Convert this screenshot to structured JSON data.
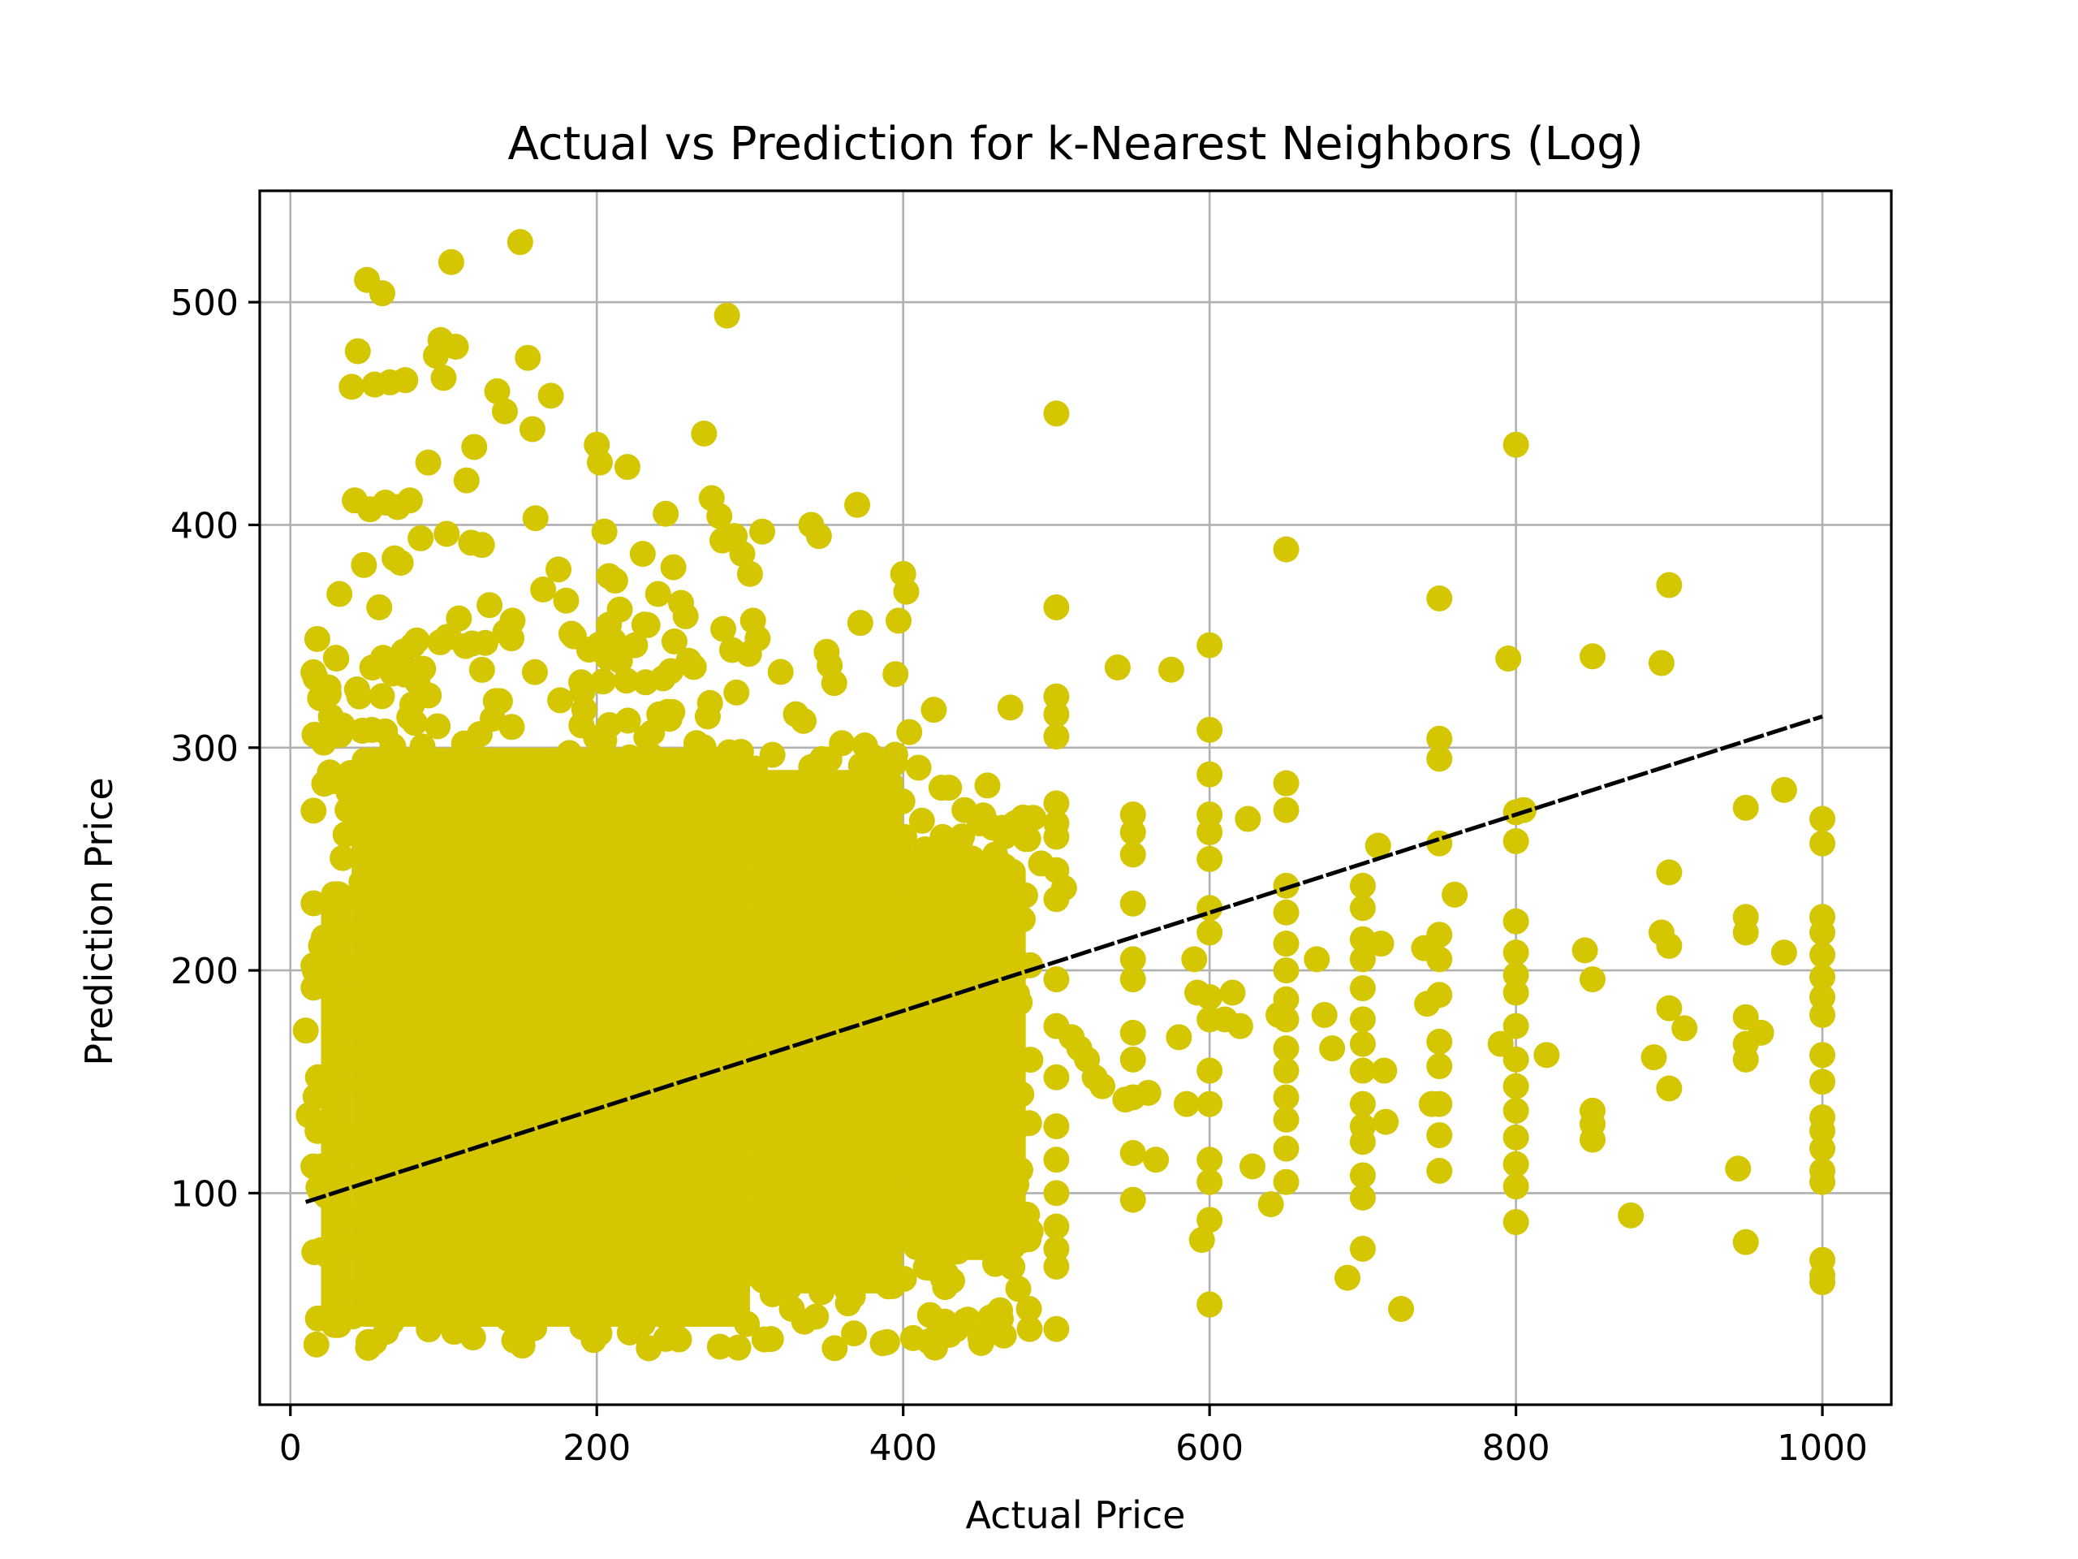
{
  "chart_data": {
    "type": "scatter",
    "title": "Actual vs Prediction for k-Nearest Neighbors (Log)",
    "xlabel": "Actual Price",
    "ylabel": "Prediction Price",
    "xlim": [
      -20,
      1045
    ],
    "ylim": [
      5,
      550
    ],
    "xticks": [
      0,
      200,
      400,
      600,
      800,
      1000
    ],
    "yticks": [
      100,
      200,
      300,
      400,
      500
    ],
    "grid": true,
    "colors": {
      "points": "#d4c600",
      "fit_line": "#000000"
    },
    "fit_line": {
      "x": [
        10,
        1000
      ],
      "y": [
        96,
        314
      ],
      "style": "dashed"
    },
    "points": [
      [
        10,
        173
      ],
      [
        12,
        135
      ],
      [
        15,
        112
      ],
      [
        18,
        152
      ],
      [
        20,
        211
      ],
      [
        22,
        195
      ],
      [
        25,
        324
      ],
      [
        28,
        285
      ],
      [
        30,
        340
      ],
      [
        32,
        369
      ],
      [
        34,
        310
      ],
      [
        36,
        261
      ],
      [
        38,
        280
      ],
      [
        40,
        462
      ],
      [
        42,
        411
      ],
      [
        44,
        478
      ],
      [
        45,
        323
      ],
      [
        48,
        382
      ],
      [
        50,
        510
      ],
      [
        52,
        407
      ],
      [
        55,
        463
      ],
      [
        58,
        363
      ],
      [
        60,
        504
      ],
      [
        62,
        410
      ],
      [
        65,
        464
      ],
      [
        68,
        385
      ],
      [
        70,
        408
      ],
      [
        72,
        383
      ],
      [
        75,
        465
      ],
      [
        78,
        411
      ],
      [
        80,
        346
      ],
      [
        85,
        394
      ],
      [
        90,
        428
      ],
      [
        95,
        476
      ],
      [
        98,
        483
      ],
      [
        100,
        466
      ],
      [
        102,
        396
      ],
      [
        105,
        518
      ],
      [
        108,
        480
      ],
      [
        110,
        358
      ],
      [
        115,
        420
      ],
      [
        118,
        392
      ],
      [
        120,
        435
      ],
      [
        125,
        391
      ],
      [
        130,
        364
      ],
      [
        135,
        460
      ],
      [
        140,
        451
      ],
      [
        145,
        357
      ],
      [
        150,
        527
      ],
      [
        155,
        475
      ],
      [
        158,
        443
      ],
      [
        160,
        403
      ],
      [
        165,
        371
      ],
      [
        170,
        458
      ],
      [
        175,
        380
      ],
      [
        180,
        366
      ],
      [
        185,
        350
      ],
      [
        190,
        310
      ],
      [
        195,
        344
      ],
      [
        200,
        436
      ],
      [
        202,
        428
      ],
      [
        205,
        397
      ],
      [
        208,
        377
      ],
      [
        212,
        375
      ],
      [
        215,
        362
      ],
      [
        220,
        426
      ],
      [
        225,
        346
      ],
      [
        230,
        387
      ],
      [
        240,
        369
      ],
      [
        245,
        405
      ],
      [
        250,
        381
      ],
      [
        255,
        365
      ],
      [
        258,
        359
      ],
      [
        260,
        339
      ],
      [
        265,
        302
      ],
      [
        270,
        441
      ],
      [
        275,
        412
      ],
      [
        280,
        404
      ],
      [
        282,
        393
      ],
      [
        285,
        494
      ],
      [
        290,
        395
      ],
      [
        295,
        387
      ],
      [
        300,
        378
      ],
      [
        302,
        357
      ],
      [
        305,
        349
      ],
      [
        308,
        397
      ],
      [
        320,
        334
      ],
      [
        330,
        315
      ],
      [
        335,
        312
      ],
      [
        340,
        400
      ],
      [
        345,
        395
      ],
      [
        350,
        343
      ],
      [
        352,
        337
      ],
      [
        355,
        329
      ],
      [
        360,
        302
      ],
      [
        370,
        409
      ],
      [
        372,
        356
      ],
      [
        375,
        301
      ],
      [
        380,
        296
      ],
      [
        385,
        286
      ],
      [
        390,
        279
      ],
      [
        395,
        333
      ],
      [
        397,
        357
      ],
      [
        400,
        378
      ],
      [
        402,
        370
      ],
      [
        404,
        307
      ],
      [
        410,
        291
      ],
      [
        420,
        317
      ],
      [
        425,
        282
      ],
      [
        430,
        282
      ],
      [
        440,
        272
      ],
      [
        450,
        266
      ],
      [
        455,
        283
      ],
      [
        460,
        252
      ],
      [
        470,
        318
      ],
      [
        480,
        259
      ],
      [
        490,
        248
      ],
      [
        500,
        450
      ],
      [
        500,
        363
      ],
      [
        500,
        323
      ],
      [
        500,
        315
      ],
      [
        500,
        305
      ],
      [
        500,
        275
      ],
      [
        500,
        266
      ],
      [
        500,
        260
      ],
      [
        500,
        245
      ],
      [
        500,
        232
      ],
      [
        500,
        196
      ],
      [
        500,
        175
      ],
      [
        500,
        152
      ],
      [
        500,
        130
      ],
      [
        500,
        115
      ],
      [
        500,
        100
      ],
      [
        500,
        85
      ],
      [
        500,
        75
      ],
      [
        500,
        67
      ],
      [
        500,
        39
      ],
      [
        505,
        237
      ],
      [
        510,
        170
      ],
      [
        515,
        165
      ],
      [
        520,
        160
      ],
      [
        525,
        152
      ],
      [
        530,
        148
      ],
      [
        540,
        336
      ],
      [
        545,
        142
      ],
      [
        550,
        270
      ],
      [
        550,
        262
      ],
      [
        550,
        252
      ],
      [
        550,
        230
      ],
      [
        550,
        205
      ],
      [
        550,
        196
      ],
      [
        550,
        172
      ],
      [
        550,
        160
      ],
      [
        550,
        143
      ],
      [
        550,
        118
      ],
      [
        550,
        97
      ],
      [
        560,
        145
      ],
      [
        565,
        115
      ],
      [
        575,
        335
      ],
      [
        580,
        170
      ],
      [
        585,
        140
      ],
      [
        590,
        205
      ],
      [
        592,
        190
      ],
      [
        595,
        79
      ],
      [
        600,
        346
      ],
      [
        600,
        308
      ],
      [
        600,
        288
      ],
      [
        600,
        270
      ],
      [
        600,
        262
      ],
      [
        600,
        250
      ],
      [
        600,
        228
      ],
      [
        600,
        217
      ],
      [
        600,
        188
      ],
      [
        600,
        178
      ],
      [
        600,
        155
      ],
      [
        600,
        140
      ],
      [
        600,
        115
      ],
      [
        600,
        105
      ],
      [
        600,
        88
      ],
      [
        600,
        50
      ],
      [
        610,
        178
      ],
      [
        615,
        190
      ],
      [
        620,
        175
      ],
      [
        625,
        268
      ],
      [
        628,
        112
      ],
      [
        640,
        95
      ],
      [
        645,
        180
      ],
      [
        650,
        389
      ],
      [
        650,
        284
      ],
      [
        650,
        272
      ],
      [
        650,
        238
      ],
      [
        650,
        226
      ],
      [
        650,
        212
      ],
      [
        650,
        200
      ],
      [
        650,
        187
      ],
      [
        650,
        178
      ],
      [
        650,
        165
      ],
      [
        650,
        155
      ],
      [
        650,
        143
      ],
      [
        650,
        133
      ],
      [
        650,
        120
      ],
      [
        650,
        105
      ],
      [
        670,
        205
      ],
      [
        675,
        180
      ],
      [
        680,
        165
      ],
      [
        690,
        62
      ],
      [
        700,
        238
      ],
      [
        700,
        228
      ],
      [
        700,
        214
      ],
      [
        700,
        205
      ],
      [
        700,
        192
      ],
      [
        700,
        178
      ],
      [
        700,
        167
      ],
      [
        700,
        155
      ],
      [
        700,
        140
      ],
      [
        700,
        130
      ],
      [
        700,
        123
      ],
      [
        700,
        108
      ],
      [
        700,
        98
      ],
      [
        700,
        75
      ],
      [
        710,
        256
      ],
      [
        712,
        212
      ],
      [
        714,
        155
      ],
      [
        715,
        132
      ],
      [
        725,
        48
      ],
      [
        740,
        210
      ],
      [
        742,
        185
      ],
      [
        745,
        140
      ],
      [
        750,
        367
      ],
      [
        750,
        304
      ],
      [
        750,
        295
      ],
      [
        750,
        257
      ],
      [
        750,
        216
      ],
      [
        750,
        205
      ],
      [
        750,
        189
      ],
      [
        750,
        168
      ],
      [
        750,
        157
      ],
      [
        750,
        140
      ],
      [
        750,
        126
      ],
      [
        750,
        110
      ],
      [
        760,
        234
      ],
      [
        790,
        167
      ],
      [
        795,
        340
      ],
      [
        800,
        436
      ],
      [
        800,
        271
      ],
      [
        800,
        258
      ],
      [
        800,
        222
      ],
      [
        800,
        208
      ],
      [
        800,
        198
      ],
      [
        800,
        190
      ],
      [
        800,
        175
      ],
      [
        800,
        160
      ],
      [
        800,
        148
      ],
      [
        800,
        137
      ],
      [
        800,
        125
      ],
      [
        800,
        113
      ],
      [
        800,
        103
      ],
      [
        800,
        87
      ],
      [
        805,
        272
      ],
      [
        820,
        162
      ],
      [
        845,
        209
      ],
      [
        850,
        341
      ],
      [
        850,
        196
      ],
      [
        850,
        137
      ],
      [
        850,
        131
      ],
      [
        850,
        124
      ],
      [
        875,
        90
      ],
      [
        890,
        161
      ],
      [
        895,
        338
      ],
      [
        895,
        217
      ],
      [
        900,
        373
      ],
      [
        900,
        244
      ],
      [
        900,
        211
      ],
      [
        900,
        183
      ],
      [
        900,
        147
      ],
      [
        910,
        174
      ],
      [
        945,
        111
      ],
      [
        950,
        273
      ],
      [
        950,
        224
      ],
      [
        950,
        217
      ],
      [
        950,
        179
      ],
      [
        950,
        167
      ],
      [
        950,
        160
      ],
      [
        950,
        78
      ],
      [
        960,
        172
      ],
      [
        975,
        281
      ],
      [
        975,
        208
      ],
      [
        1000,
        268
      ],
      [
        1000,
        257
      ],
      [
        1000,
        224
      ],
      [
        1000,
        217
      ],
      [
        1000,
        207
      ],
      [
        1000,
        197
      ],
      [
        1000,
        188
      ],
      [
        1000,
        180
      ],
      [
        1000,
        162
      ],
      [
        1000,
        150
      ],
      [
        1000,
        134
      ],
      [
        1000,
        128
      ],
      [
        1000,
        120
      ],
      [
        1000,
        110
      ],
      [
        1000,
        105
      ],
      [
        1000,
        70
      ],
      [
        1000,
        63
      ],
      [
        1000,
        60
      ]
    ]
  }
}
